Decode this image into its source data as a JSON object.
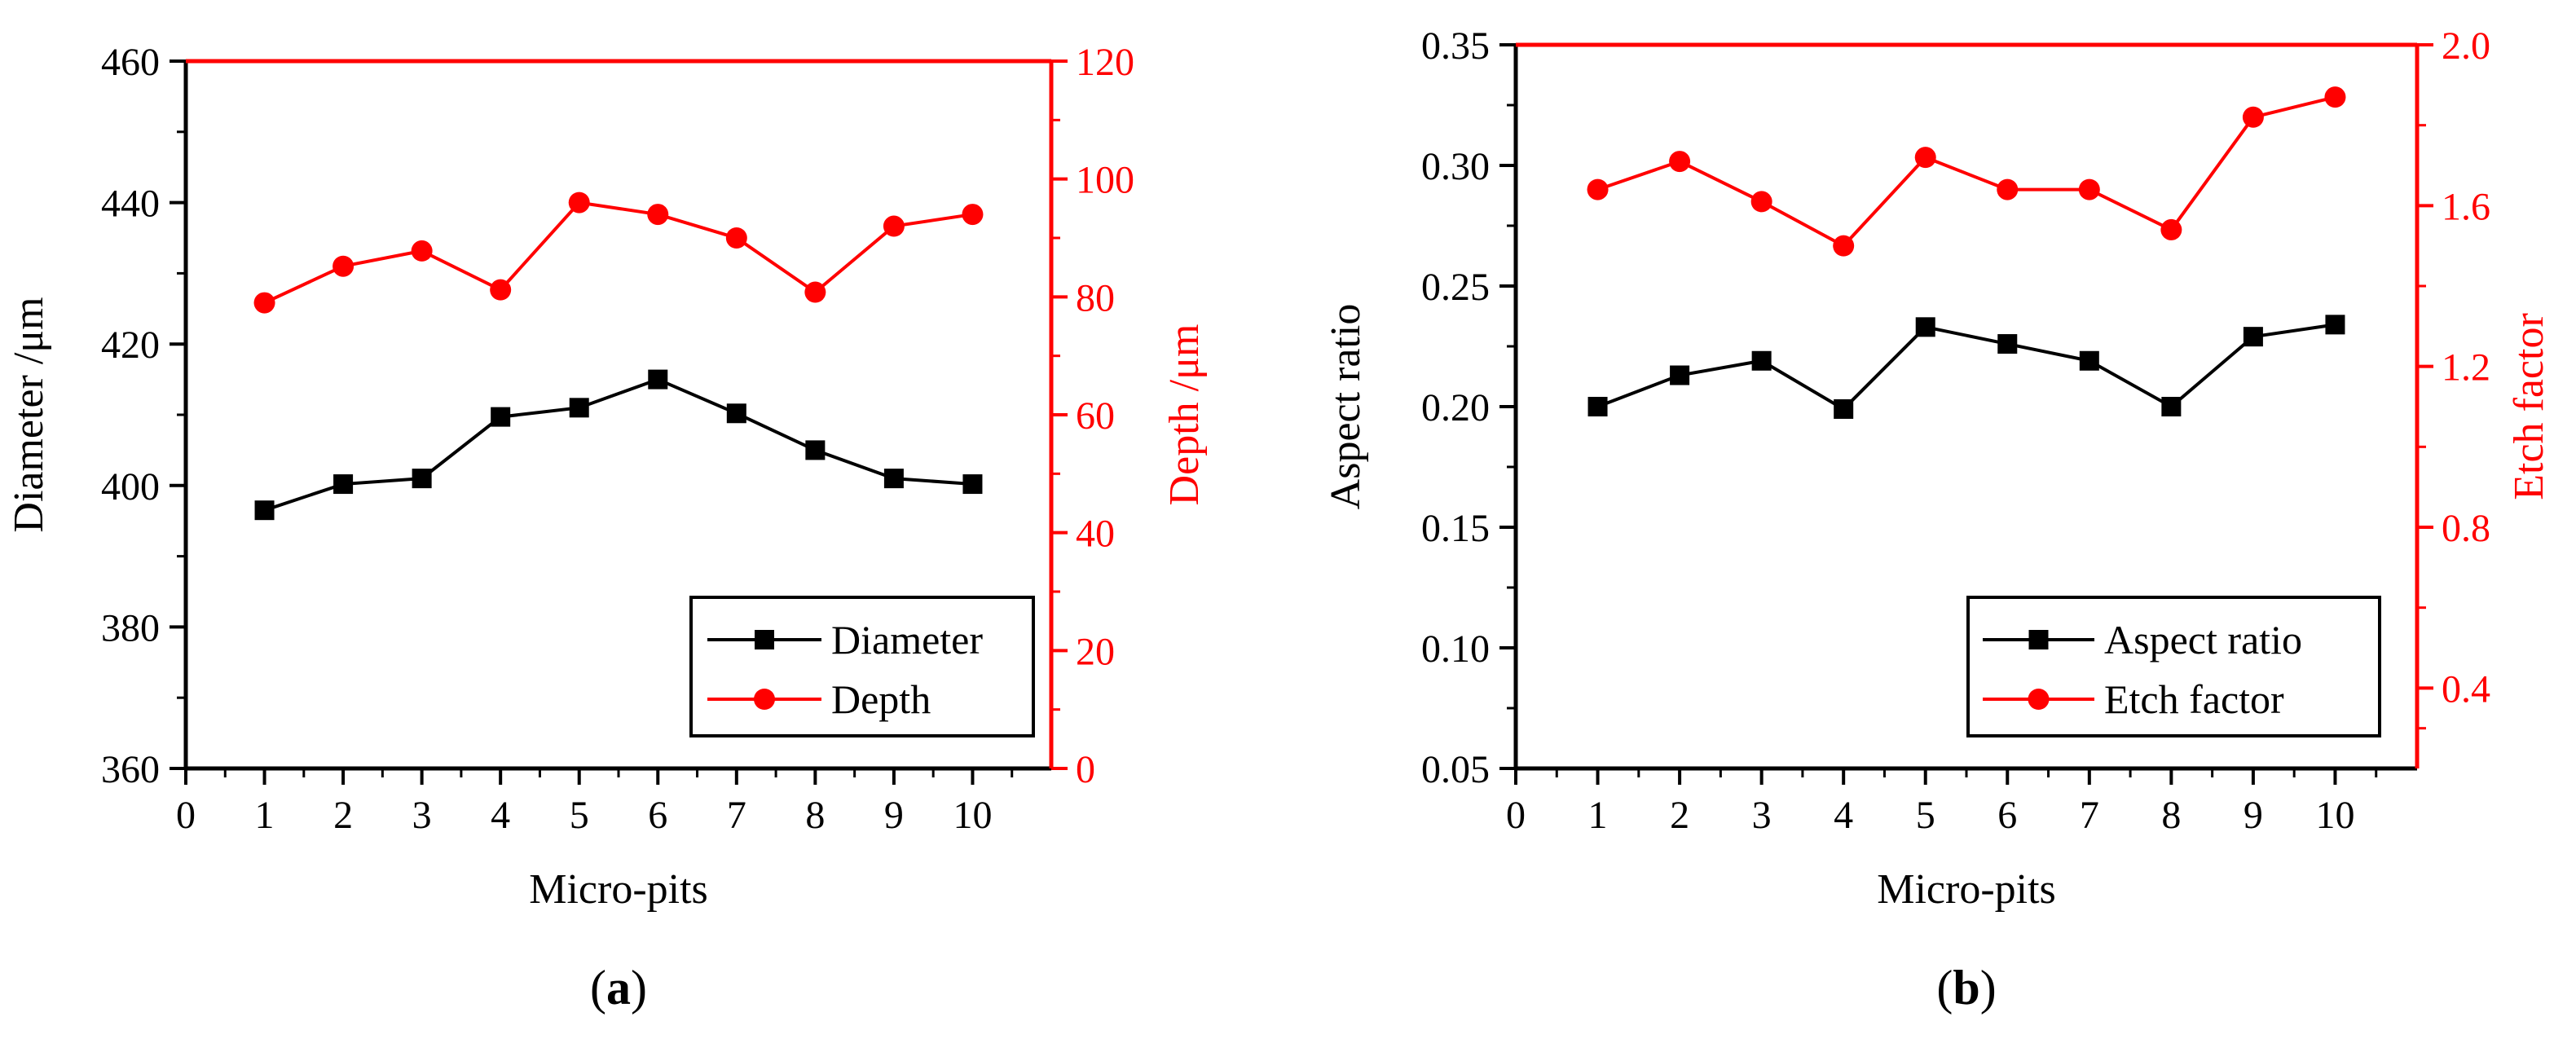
{
  "colors": {
    "left": "#000000",
    "right": "#ff0000"
  },
  "chart_data": [
    {
      "id": "a",
      "type": "line",
      "panel_label": "(a)",
      "panel_label_parts": {
        "open": "(",
        "letter": "a",
        "close": ")"
      },
      "xlabel": "Micro-pits",
      "xlim": [
        0,
        11
      ],
      "xticks": [
        0,
        1,
        2,
        3,
        4,
        5,
        6,
        7,
        8,
        9,
        10
      ],
      "left_axis": {
        "label": "Diameter /μm",
        "ylim": [
          360,
          460
        ],
        "ticks": [
          360,
          380,
          400,
          420,
          440,
          460
        ],
        "tick_labels": [
          "360",
          "380",
          "400",
          "420",
          "440",
          "460"
        ]
      },
      "right_axis": {
        "label": "Depth /μm",
        "ylim": [
          0,
          120
        ],
        "ticks": [
          0,
          20,
          40,
          60,
          80,
          100,
          120
        ],
        "tick_labels": [
          "0",
          "20",
          "40",
          "60",
          "80",
          "100",
          "120"
        ]
      },
      "x": [
        1,
        2,
        3,
        4,
        5,
        6,
        7,
        8,
        9,
        10
      ],
      "series": [
        {
          "name": "Diameter",
          "axis": "left",
          "marker": "square",
          "values": [
            396.5,
            400.2,
            401,
            409.7,
            411,
            415,
            410.2,
            405,
            401,
            400.2
          ]
        },
        {
          "name": "Depth",
          "axis": "right",
          "marker": "circle",
          "values": [
            79,
            85.2,
            87.8,
            81.2,
            96,
            94,
            90,
            80.8,
            92,
            94
          ]
        }
      ],
      "legend": {
        "position": "bottom-right",
        "entries": [
          "Diameter",
          "Depth"
        ]
      }
    },
    {
      "id": "b",
      "type": "line",
      "panel_label": "(b)",
      "panel_label_parts": {
        "open": "(",
        "letter": "b",
        "close": ")"
      },
      "xlabel": "Micro-pits",
      "xlim": [
        0,
        11
      ],
      "xticks": [
        0,
        1,
        2,
        3,
        4,
        5,
        6,
        7,
        8,
        9,
        10
      ],
      "left_axis": {
        "label": "Aspect ratio",
        "ylim": [
          0.05,
          0.35
        ],
        "ticks": [
          0.05,
          0.1,
          0.15,
          0.2,
          0.25,
          0.3,
          0.35
        ],
        "tick_labels": [
          "0.05",
          "0.10",
          "0.15",
          "0.20",
          "0.25",
          "0.30",
          "0.35"
        ]
      },
      "right_axis": {
        "label": "Etch factor",
        "ylim": [
          0.2,
          2.0
        ],
        "ticks": [
          0.4,
          0.8,
          1.2,
          1.6,
          2.0
        ],
        "tick_labels": [
          "0.4",
          "0.8",
          "1.2",
          "1.6",
          "2.0"
        ]
      },
      "x": [
        1,
        2,
        3,
        4,
        5,
        6,
        7,
        8,
        9,
        10
      ],
      "series": [
        {
          "name": "Aspect ratio",
          "axis": "left",
          "marker": "square",
          "values": [
            0.2,
            0.213,
            0.219,
            0.199,
            0.233,
            0.226,
            0.219,
            0.2,
            0.229,
            0.234
          ]
        },
        {
          "name": "Etch factor",
          "axis": "right",
          "marker": "circle",
          "values": [
            1.64,
            1.71,
            1.61,
            1.5,
            1.72,
            1.64,
            1.64,
            1.54,
            1.82,
            1.87
          ]
        }
      ],
      "legend": {
        "position": "bottom-right",
        "entries": [
          "Aspect ratio",
          "Etch factor"
        ]
      }
    }
  ]
}
